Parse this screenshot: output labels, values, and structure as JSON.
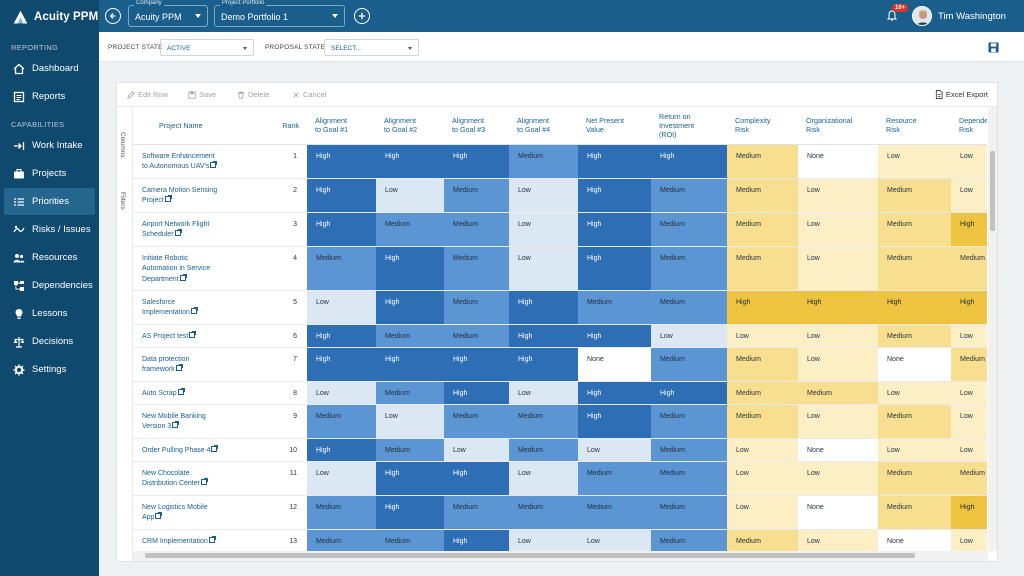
{
  "app": {
    "brand": "Acuity PPM"
  },
  "sidebar": {
    "reporting_label": "REPORTING",
    "capabilities_label": "CAPABILITIES",
    "reporting_items": [
      {
        "label": "Dashboard",
        "icon": "home-icon"
      },
      {
        "label": "Reports",
        "icon": "report-icon"
      }
    ],
    "capability_items": [
      {
        "label": "Work Intake",
        "icon": "intake-arrow-icon"
      },
      {
        "label": "Projects",
        "icon": "briefcase-icon"
      },
      {
        "label": "Priorities",
        "icon": "list-priority-icon",
        "active": true
      },
      {
        "label": "Risks / Issues",
        "icon": "risk-icon"
      },
      {
        "label": "Resources",
        "icon": "people-icon"
      },
      {
        "label": "Dependencies",
        "icon": "network-icon"
      },
      {
        "label": "Lessons",
        "icon": "lightbulb-icon"
      },
      {
        "label": "Decisions",
        "icon": "scale-icon"
      },
      {
        "label": "Settings",
        "icon": "gear-icon"
      }
    ]
  },
  "topbar": {
    "company_label": "Company",
    "company_value": "Acuity PPM",
    "portfolio_label": "Project Portfolio",
    "portfolio_value": "Demo Portfolio 1",
    "notifications_badge": "10+",
    "user_name": "Tim Washington"
  },
  "filters": {
    "project_state_label": "PROJECT STATE",
    "project_state_value": "ACTIVE",
    "proposal_state_label": "PROPOSAL STATE",
    "proposal_state_value": "SELECT..."
  },
  "toolbar": {
    "edit_row": "Edit Row",
    "save": "Save",
    "delete": "Delete",
    "cancel": "Cancel",
    "excel_export": "Excel Export"
  },
  "side_tabs": {
    "columns": "Columns",
    "filters": "Filters"
  },
  "colors": {
    "blue_dark": "#2d6eb5",
    "blue_medium": "#5b95d3",
    "blue_low": "#dbe7f3",
    "yellow_high": "#eec340",
    "yellow_medium": "#f8df8f",
    "yellow_low": "#fcefc6",
    "none": "#ffffff"
  },
  "table": {
    "columns": [
      {
        "label": "Project Name"
      },
      {
        "label": "Rank"
      },
      {
        "label": "Alignment to Goal #1",
        "lines": [
          "Alignment",
          "to Goal #1"
        ]
      },
      {
        "label": "Alignment to Goal #2",
        "lines": [
          "Alignment",
          "to Goal #2"
        ]
      },
      {
        "label": "Alignment to Goal #3",
        "lines": [
          "Alignment",
          "to Goal #3"
        ]
      },
      {
        "label": "Alignment to Goal #4",
        "lines": [
          "Alignment",
          "to Goal #4"
        ]
      },
      {
        "label": "Net Present Value",
        "lines": [
          "Net Present",
          "Value"
        ]
      },
      {
        "label": "Return on Investment (ROI)",
        "lines": [
          "Return on",
          "Investment",
          "(ROI)"
        ]
      },
      {
        "label": "Complexity Risk",
        "lines": [
          "Complexity",
          "Risk"
        ]
      },
      {
        "label": "Organizational Risk",
        "lines": [
          "Organizational",
          "Risk"
        ]
      },
      {
        "label": "Resource Risk",
        "lines": [
          "Resource",
          "Risk"
        ]
      },
      {
        "label": "Dependency Risk",
        "lines": [
          "Dependency",
          "Risk"
        ]
      }
    ],
    "rows": [
      {
        "name": "Software Enhancement to Autonomous UAV's",
        "lines": [
          "Software Enhancement",
          "to Autonomous UAV's"
        ],
        "rank": "1",
        "values": [
          "High",
          "High",
          "High",
          "Medium",
          "High",
          "High",
          "Medium",
          "None",
          "Low",
          "Low"
        ]
      },
      {
        "name": "Camera Motion Sensing Project",
        "lines": [
          "Camera Motion Sensing",
          "Project"
        ],
        "rank": "2",
        "values": [
          "High",
          "Low",
          "Medium",
          "Low",
          "High",
          "Medium",
          "Medium",
          "Low",
          "Medium",
          "Low"
        ]
      },
      {
        "name": "Airport Network Flight Scheduler",
        "lines": [
          "Airport Network Flight",
          "Scheduler"
        ],
        "rank": "3",
        "values": [
          "High",
          "Medium",
          "Medium",
          "Low",
          "High",
          "Medium",
          "Medium",
          "Low",
          "Medium",
          "High"
        ]
      },
      {
        "name": "Initiate Robotic Automation in Service Department",
        "lines": [
          "Initiate Robotic",
          "Automation in Service",
          "Department"
        ],
        "rank": "4",
        "values": [
          "Medium",
          "High",
          "Medium",
          "Low",
          "High",
          "Medium",
          "Medium",
          "Low",
          "Medium",
          "Medium"
        ]
      },
      {
        "name": "Salesforce Implementation",
        "lines": [
          "Salesforce",
          "Implementation"
        ],
        "rank": "5",
        "values": [
          "Low",
          "High",
          "Medium",
          "High",
          "Medium",
          "Medium",
          "High",
          "High",
          "High",
          "High"
        ]
      },
      {
        "name": "AS Project test",
        "lines": [
          "AS Project test"
        ],
        "rank": "6",
        "values": [
          "High",
          "Medium",
          "Medium",
          "High",
          "High",
          "Low",
          "Low",
          "Low",
          "Medium",
          "Low"
        ]
      },
      {
        "name": "Data protection framework",
        "lines": [
          "Data protection",
          "framework"
        ],
        "rank": "7",
        "values": [
          "High",
          "High",
          "High",
          "High",
          "None",
          "Medium",
          "Medium",
          "Low",
          "None",
          "Medium"
        ]
      },
      {
        "name": "Auto Scrap",
        "lines": [
          "Auto Scrap"
        ],
        "rank": "8",
        "values": [
          "Low",
          "Medium",
          "High",
          "Low",
          "High",
          "High",
          "Medium",
          "Medium",
          "Low",
          "Low"
        ]
      },
      {
        "name": "New Mobile Banking Version 3",
        "lines": [
          "New Mobile Banking",
          "Version 3"
        ],
        "rank": "9",
        "values": [
          "Medium",
          "Low",
          "Medium",
          "Medium",
          "High",
          "Medium",
          "Medium",
          "Low",
          "Medium",
          "Low"
        ]
      },
      {
        "name": "Order Pulling Phase 4",
        "lines": [
          "Order Pulling Phase 4"
        ],
        "rank": "10",
        "values": [
          "High",
          "Medium",
          "Low",
          "Medium",
          "Low",
          "Medium",
          "Low",
          "None",
          "Low",
          "Low"
        ]
      },
      {
        "name": "New Chocolate Distribution Center",
        "lines": [
          "New Chocolate",
          "Distribution Center"
        ],
        "rank": "11",
        "values": [
          "Low",
          "High",
          "High",
          "Low",
          "Medium",
          "Medium",
          "Low",
          "Low",
          "Medium",
          "Medium"
        ]
      },
      {
        "name": "New Logistics Mobile App",
        "lines": [
          "New Logistics Mobile",
          "App"
        ],
        "rank": "12",
        "values": [
          "Medium",
          "High",
          "Medium",
          "Medium",
          "Medium",
          "Medium",
          "Low",
          "None",
          "Medium",
          "High"
        ]
      },
      {
        "name": "CRM Implementation",
        "lines": [
          "CRM Implementation"
        ],
        "rank": "13",
        "values": [
          "Medium",
          "Medium",
          "High",
          "Low",
          "Low",
          "Medium",
          "Medium",
          "Low",
          "None",
          "Low"
        ]
      }
    ]
  }
}
